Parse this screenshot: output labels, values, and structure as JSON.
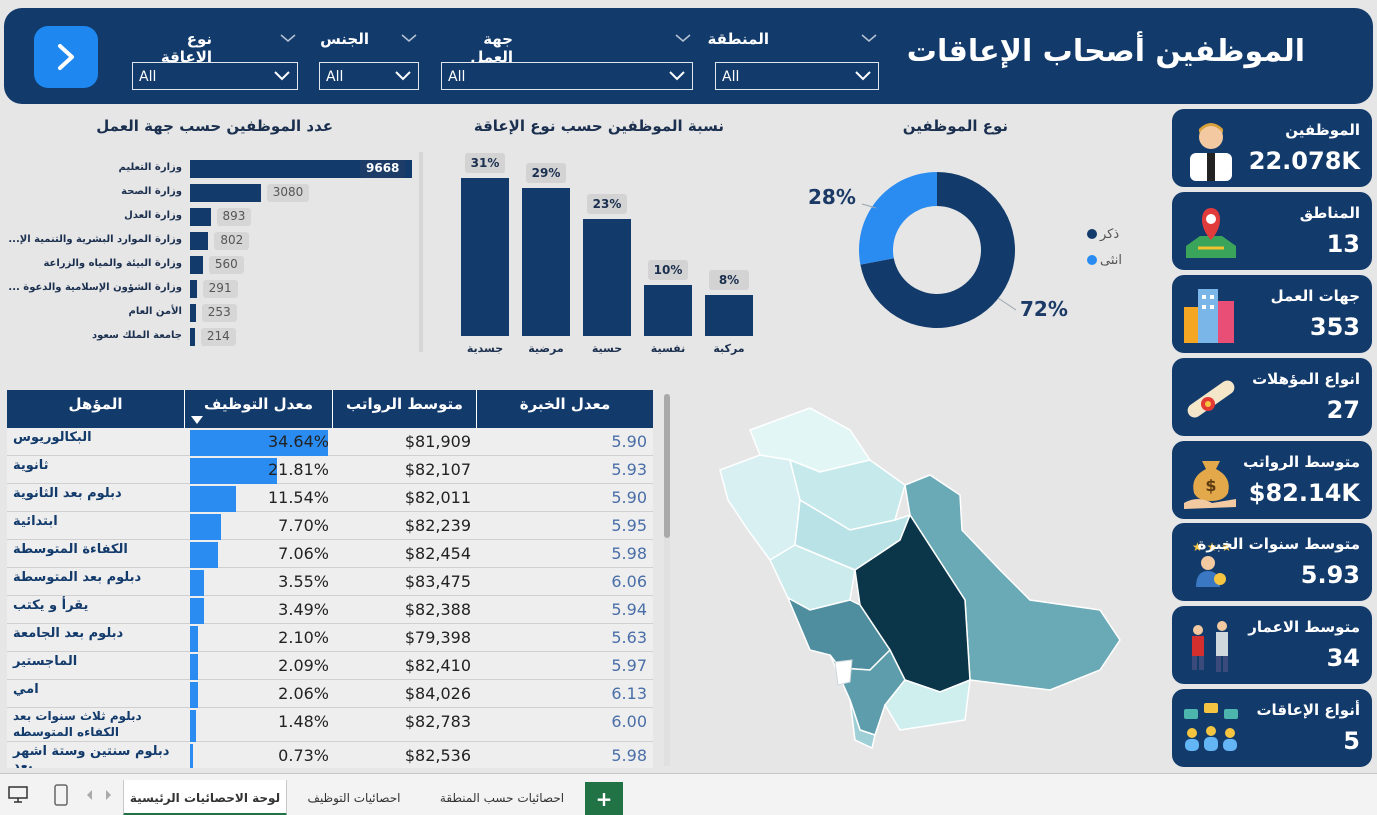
{
  "header": {
    "title": "الموظفين أصحاب الإعاقات",
    "slicers": [
      {
        "label": "نوع الإعاقة",
        "value": "All"
      },
      {
        "label": "الجنس",
        "value": "All"
      },
      {
        "label": "جهة العمل",
        "value": "All"
      },
      {
        "label": "المنطقة",
        "value": "All"
      }
    ]
  },
  "kpis": [
    {
      "label": "الموظفين",
      "value": "22.078K",
      "icon": "employee-icon"
    },
    {
      "label": "المناطق",
      "value": "13",
      "icon": "map-pin-icon"
    },
    {
      "label": "جهات العمل",
      "value": "353",
      "icon": "buildings-icon"
    },
    {
      "label": "انواع المؤهلات",
      "value": "27",
      "icon": "diploma-icon"
    },
    {
      "label": "متوسط الرواتب",
      "value": "$82.14K",
      "icon": "money-bag-icon"
    },
    {
      "label": "متوسط سنوات الخبرة",
      "value": "5.93",
      "icon": "expert-icon"
    },
    {
      "label": "متوسط الاعمار",
      "value": "34",
      "icon": "elderly-icon"
    },
    {
      "label": "أنواع الإعاقات",
      "value": "5",
      "icon": "people-chat-icon"
    }
  ],
  "chart_data": [
    {
      "type": "bar",
      "orientation": "horizontal",
      "title": "عدد الموظفين حسب جهة العمل",
      "categories": [
        "وزارة التعليم",
        "وزارة الصحة",
        "وزارة العدل",
        "وزارة الموارد البشرية والتنمية الإ...",
        "وزارة البيئة والمياه والزراعة",
        "وزارة الشؤون الإسلامية والدعوة ...",
        "الأمن العام",
        "جامعة الملك سعود"
      ],
      "values": [
        9668,
        3080,
        893,
        802,
        560,
        291,
        253,
        214
      ],
      "value_labels": [
        "9668",
        "3080",
        "893",
        "802",
        "560",
        "291",
        "253",
        "214"
      ]
    },
    {
      "type": "bar",
      "title": "نسبة الموظفين حسب نوع الإعاقة",
      "categories": [
        "جسدية",
        "مرضية",
        "حسية",
        "نفسية",
        "مركبة"
      ],
      "values": [
        31,
        29,
        23,
        10,
        8
      ],
      "value_labels": [
        "31%",
        "29%",
        "23%",
        "10%",
        "8%"
      ],
      "ylim": [
        0,
        31
      ]
    },
    {
      "type": "pie",
      "style": "donut",
      "title": "نوع الموظفين",
      "categories": [
        "ذكر",
        "انثى"
      ],
      "values": [
        72,
        28
      ],
      "value_labels": [
        "72%",
        "28%"
      ],
      "colors": [
        "#123a6b",
        "#2a8cf0"
      ],
      "legend": "right"
    }
  ],
  "table": {
    "headers": {
      "qual": "المؤهل",
      "rate": "معدل التوظيف",
      "salary": "متوسط الرواتب",
      "exp": "معدل الخبرة"
    },
    "rows": [
      {
        "q": "البكالوريوس",
        "rate": "34.64%",
        "rate_value": 34.64,
        "sal": "$81,909",
        "exp": "5.90"
      },
      {
        "q": "ثانوية",
        "rate": "21.81%",
        "rate_value": 21.81,
        "sal": "$82,107",
        "exp": "5.93"
      },
      {
        "q": "دبلوم بعد الثانوية",
        "rate": "11.54%",
        "rate_value": 11.54,
        "sal": "$82,011",
        "exp": "5.90"
      },
      {
        "q": "ابتدائية",
        "rate": "7.70%",
        "rate_value": 7.7,
        "sal": "$82,239",
        "exp": "5.95"
      },
      {
        "q": "الكفاءة المتوسطة",
        "rate": "7.06%",
        "rate_value": 7.06,
        "sal": "$82,454",
        "exp": "5.98"
      },
      {
        "q": "دبلوم بعد المتوسطة",
        "rate": "3.55%",
        "rate_value": 3.55,
        "sal": "$83,475",
        "exp": "6.06"
      },
      {
        "q": "يقرأ و يكتب",
        "rate": "3.49%",
        "rate_value": 3.49,
        "sal": "$82,388",
        "exp": "5.94"
      },
      {
        "q": "دبلوم بعد الجامعة",
        "rate": "2.10%",
        "rate_value": 2.1,
        "sal": "$79,398",
        "exp": "5.63"
      },
      {
        "q": "الماجستير",
        "rate": "2.09%",
        "rate_value": 2.09,
        "sal": "$82,410",
        "exp": "5.97"
      },
      {
        "q": "امي",
        "rate": "2.06%",
        "rate_value": 2.06,
        "sal": "$84,026",
        "exp": "6.13"
      },
      {
        "q": "دبلوم ثلاث سنوات بعد الكفاءه المتوسطه",
        "rate": "1.48%",
        "rate_value": 1.48,
        "sal": "$82,783",
        "exp": "6.00"
      },
      {
        "q": "دبلوم سنتين وستة اشهر بعد",
        "rate": "0.73%",
        "rate_value": 0.73,
        "sal": "$82,536",
        "exp": "5.98"
      }
    ]
  },
  "tabs": [
    "لوحة الاحصائيات الرئيسية",
    "احصائيات التوظيف",
    "احصائيات حسب المنطقة"
  ],
  "tab_add_label": "+",
  "colors": {
    "navy": "#123a6b",
    "accent": "#2a8cf0"
  }
}
